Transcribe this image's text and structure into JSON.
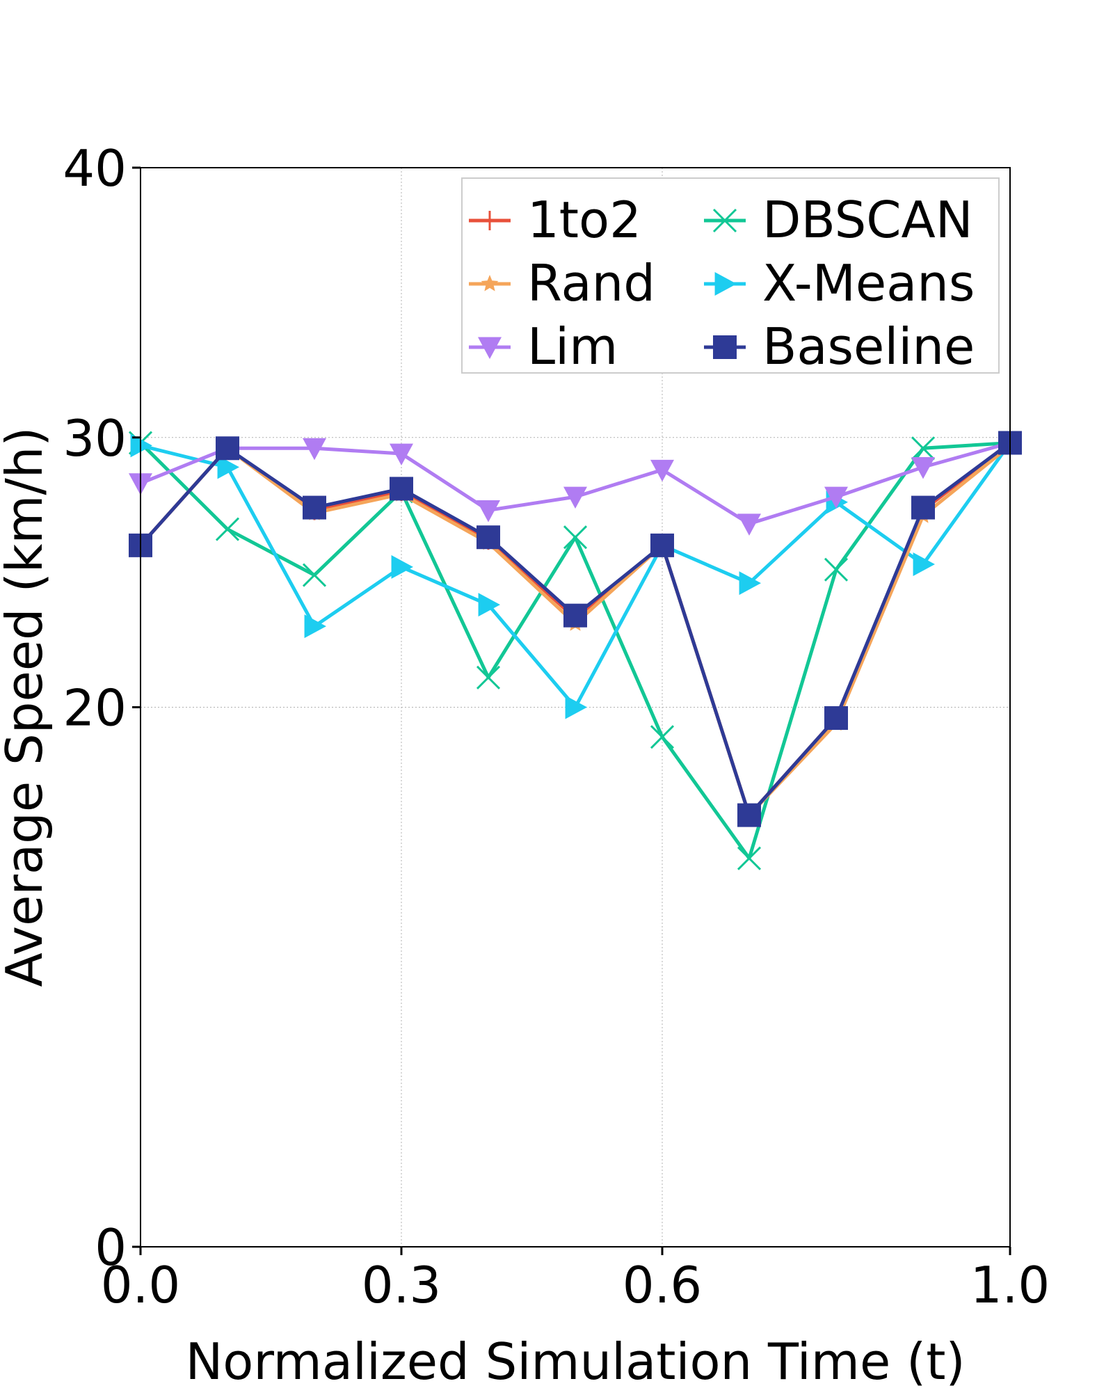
{
  "chart_data": {
    "type": "line",
    "title": "",
    "xlabel": "Normalized Simulation Time (t)",
    "ylabel": "Average Speed (km/h)",
    "xlim": [
      0.0,
      1.0
    ],
    "ylim": [
      0,
      40
    ],
    "x_ticks": [
      0.0,
      0.3,
      0.6,
      1.0
    ],
    "x_tick_labels": [
      "0.0",
      "0.3",
      "0.6",
      "1.0"
    ],
    "y_ticks": [
      0,
      20,
      30,
      40
    ],
    "y_tick_labels": [
      "0",
      "20",
      "30",
      "40"
    ],
    "grid": true,
    "legend_position": "top-right",
    "x": [
      0.0,
      0.1,
      0.2,
      0.3,
      0.4,
      0.5,
      0.6,
      0.7,
      0.8,
      0.9,
      1.0
    ],
    "series": [
      {
        "name": "1to2",
        "color": "#e8503a",
        "marker": "plus",
        "values": [
          26.0,
          29.6,
          27.3,
          28.0,
          26.2,
          23.3,
          26.0,
          16.0,
          19.6,
          27.3,
          29.8
        ]
      },
      {
        "name": "Rand",
        "color": "#f5a55a",
        "marker": "star",
        "values": [
          26.0,
          29.6,
          27.2,
          27.9,
          26.1,
          23.1,
          26.0,
          16.0,
          19.4,
          27.1,
          29.7
        ]
      },
      {
        "name": "Lim",
        "color": "#b07cf2",
        "marker": "triangle-down",
        "values": [
          28.3,
          29.6,
          29.6,
          29.4,
          27.3,
          27.8,
          28.8,
          26.8,
          27.8,
          28.9,
          29.8
        ]
      },
      {
        "name": "DBSCAN",
        "color": "#12c795",
        "marker": "x",
        "values": [
          29.8,
          26.6,
          24.9,
          28.0,
          21.1,
          26.3,
          18.9,
          14.4,
          25.1,
          29.6,
          29.8
        ]
      },
      {
        "name": "X-Means",
        "color": "#1dcdf0",
        "marker": "triangle-right",
        "values": [
          29.7,
          28.9,
          23.0,
          25.2,
          23.8,
          20.0,
          26.0,
          24.6,
          27.6,
          25.3,
          29.8
        ]
      },
      {
        "name": "Baseline",
        "color": "#2e3a96",
        "marker": "square",
        "values": [
          26.0,
          29.6,
          27.4,
          28.1,
          26.3,
          23.4,
          26.0,
          16.0,
          19.6,
          27.4,
          29.8
        ]
      }
    ]
  }
}
